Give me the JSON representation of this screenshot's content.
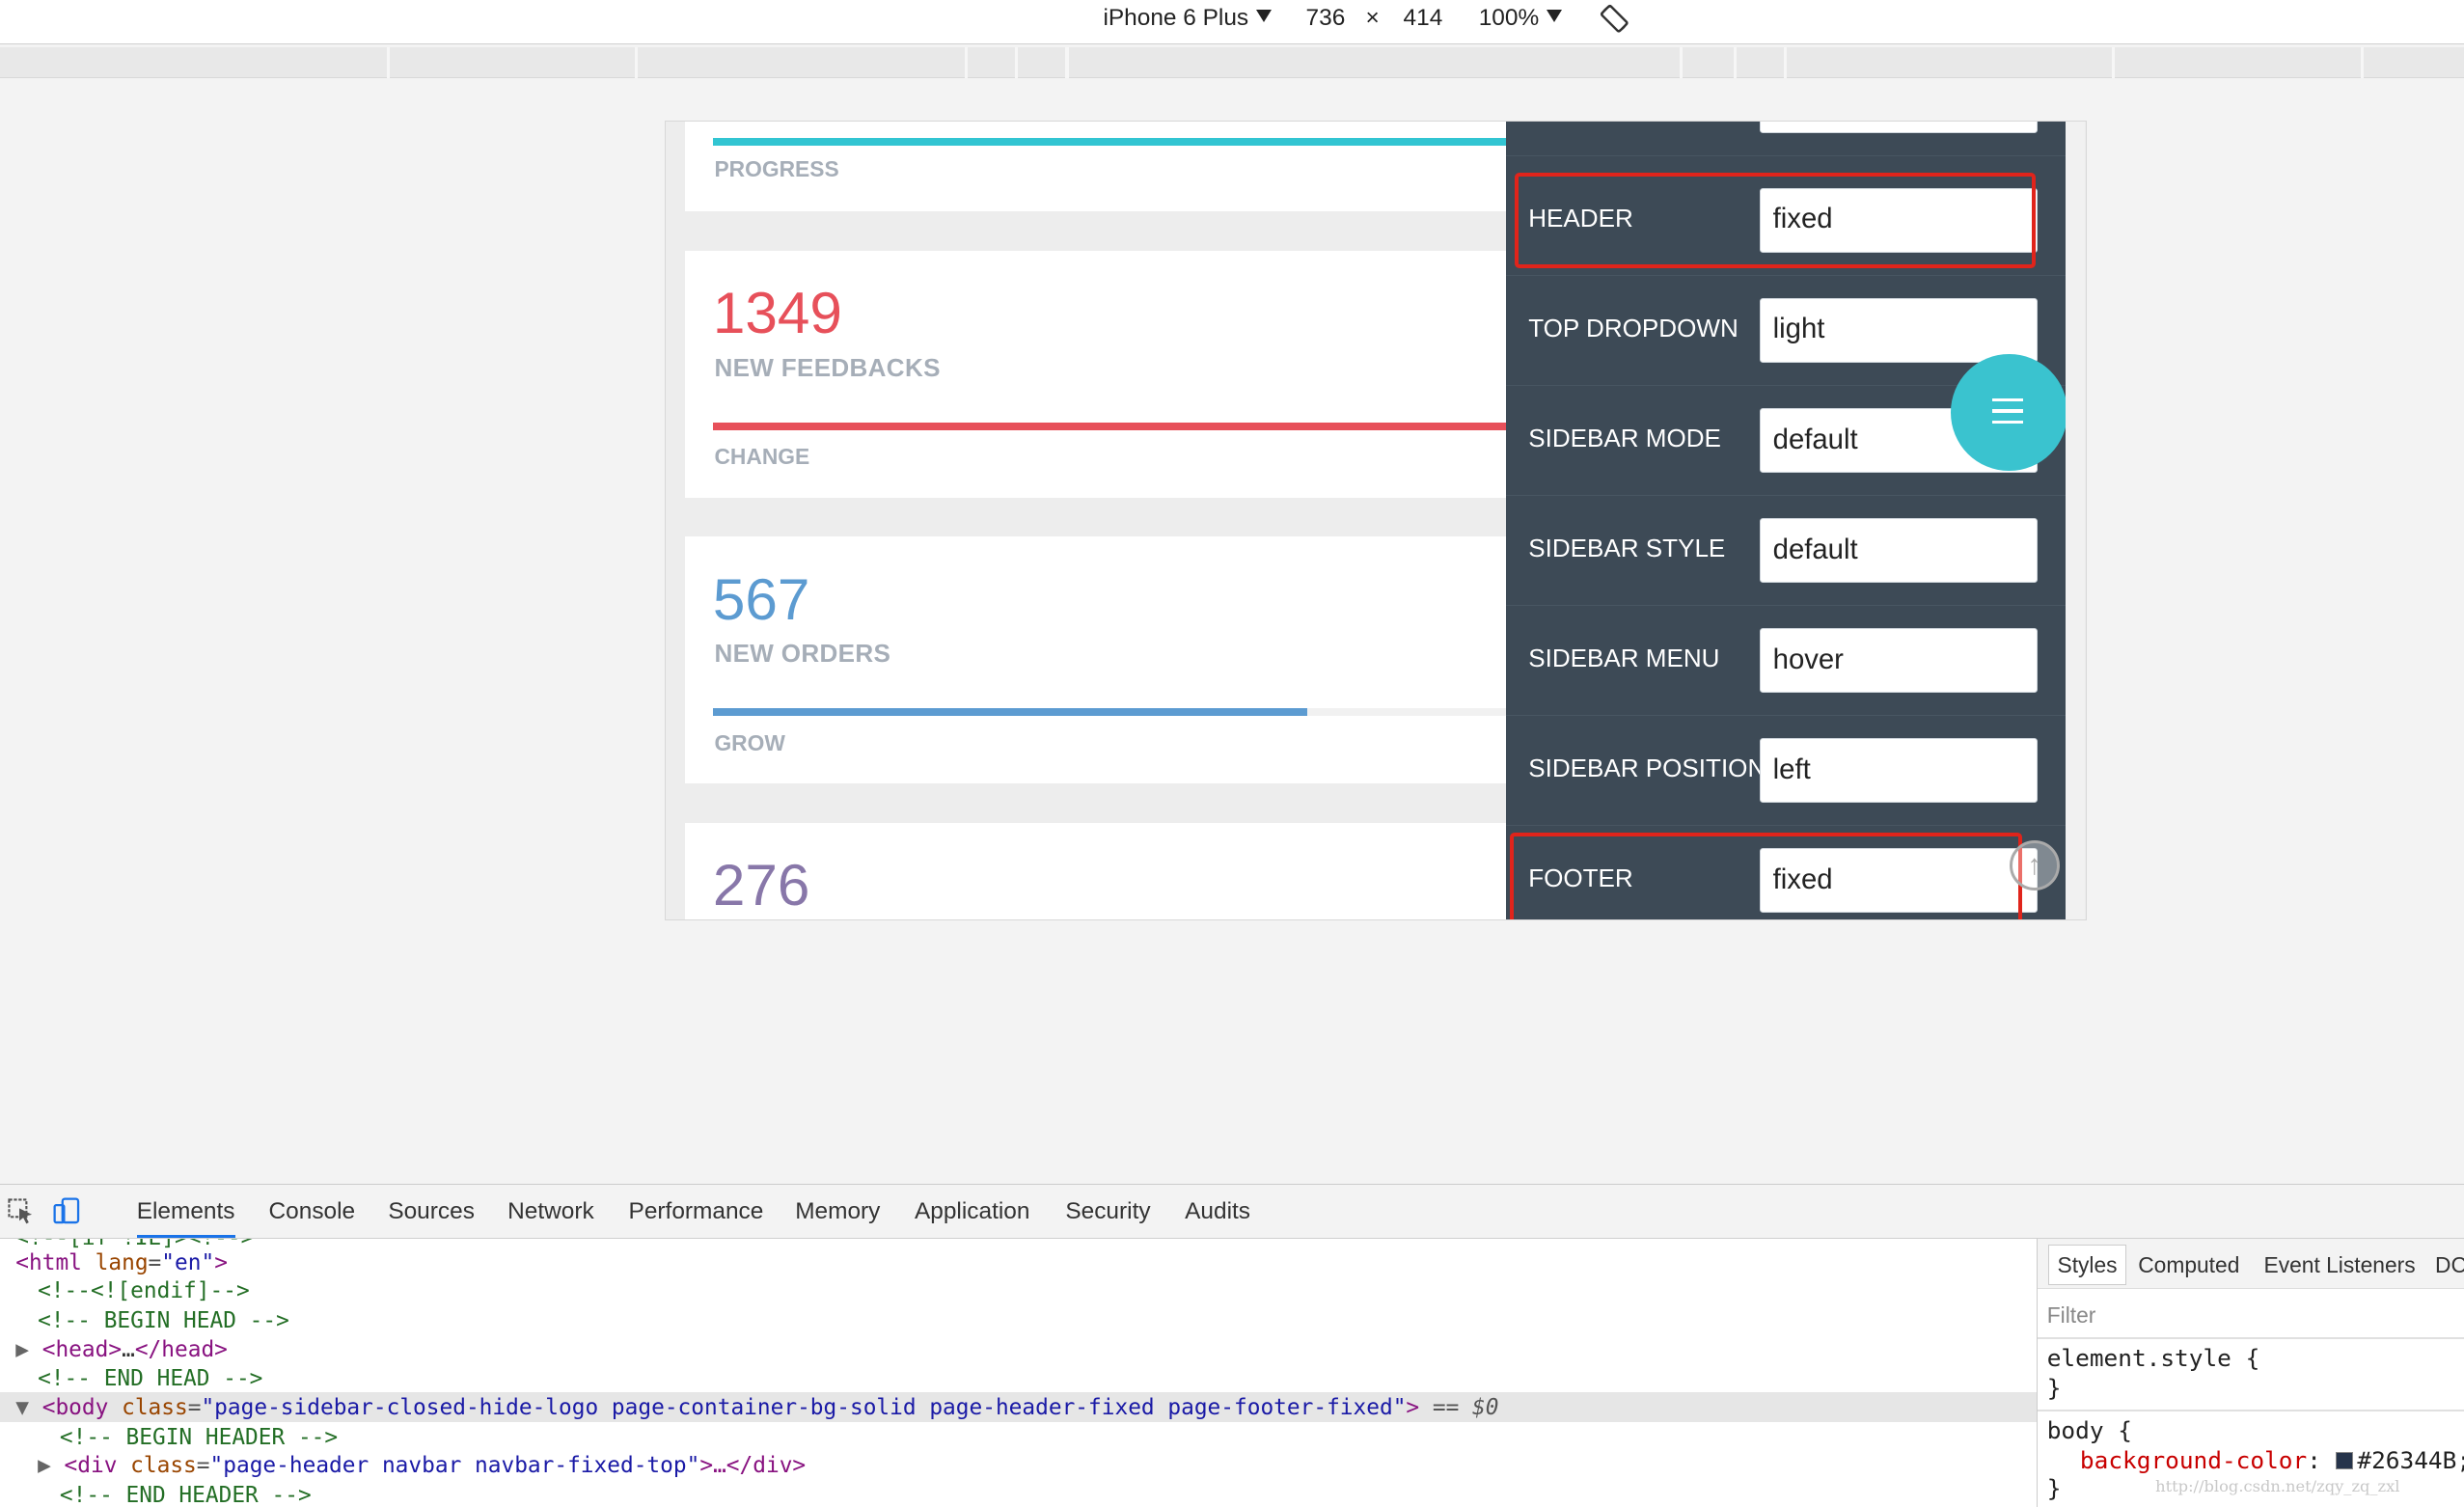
{
  "device_toolbar": {
    "device": "iPhone 6 Plus",
    "width": "736",
    "times": "×",
    "height": "414",
    "zoom": "100%"
  },
  "dashboard": {
    "progress_label": "PROGRESS",
    "cards": [
      {
        "value": "1349",
        "label": "NEW FEEDBACKS",
        "status": "CHANGE",
        "color": "#e7505a",
        "progress_pct": 100
      },
      {
        "value": "567",
        "label": "NEW ORDERS",
        "status": "GROW",
        "color": "#5c9bd1",
        "progress_pct": 70
      },
      {
        "value": "276",
        "color": "#8877a9"
      }
    ],
    "top_bar_color": "#32c5d2"
  },
  "theme_panel": {
    "rows": [
      {
        "label": "HEADER",
        "value": "fixed",
        "highlighted": true
      },
      {
        "label": "TOP DROPDOWN",
        "value": "light"
      },
      {
        "label": "SIDEBAR MODE",
        "value": "default"
      },
      {
        "label": "SIDEBAR STYLE",
        "value": "default"
      },
      {
        "label": "SIDEBAR MENU",
        "value": "hover"
      },
      {
        "label": "SIDEBAR POSITION",
        "value": "left"
      },
      {
        "label": "FOOTER",
        "value": "fixed",
        "highlighted": true
      }
    ],
    "highlight_color": "#e0241b",
    "panel_color": "#3d4a56",
    "fab_color": "#3ac3cf",
    "scroll_top_glyph": "↑"
  },
  "devtools": {
    "tabs": [
      "Elements",
      "Console",
      "Sources",
      "Network",
      "Performance",
      "Memory",
      "Application",
      "Security",
      "Audits"
    ],
    "active_tab": "Elements",
    "dom_lines": {
      "top_cut": "<!--[if !IE]><!-->",
      "html_open": {
        "tag": "<html ",
        "attr": "lang",
        "val": "\"en\"",
        "close": ">"
      },
      "endif": "<!--<![endif]-->",
      "begin_head": "<!-- BEGIN HEAD -->",
      "head": {
        "open": "<head>",
        "ellipsis": "…",
        "close": "</head>"
      },
      "end_head": "<!-- END HEAD -->",
      "body": {
        "tag": "<body ",
        "attr": "class",
        "val": "\"page-sidebar-closed-hide-logo page-container-bg-solid page-header-fixed page-footer-fixed\"",
        "close": ">",
        "marker": " == $0"
      },
      "begin_header": "<!-- BEGIN HEADER -->",
      "div": {
        "tag": "<div ",
        "attr": "class",
        "val": "\"page-header navbar navbar-fixed-top\"",
        "mid": ">…",
        "close": "</div>"
      },
      "end_header": "<!-- END HEADER -->"
    },
    "styles_tabs": [
      "Styles",
      "Computed",
      "Event Listeners",
      "DC"
    ],
    "filter_placeholder": "Filter",
    "css_rules": {
      "element_style_open": "element.style {",
      "element_style_close": "}",
      "body_open": "body {",
      "prop": "background-color",
      "value": "#26344B;",
      "body_close": "}"
    },
    "swatch_color": "#26344B",
    "watermark": "http://blog.csdn.net/zqy_zq_zxl"
  }
}
